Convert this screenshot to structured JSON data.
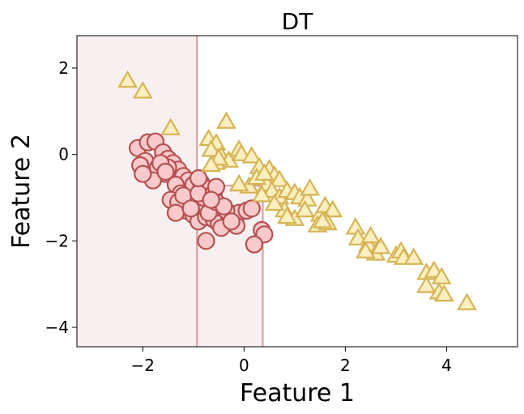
{
  "chart_data": {
    "type": "scatter",
    "title": "DT",
    "xlabel": "Feature 1",
    "ylabel": "Feature 2",
    "xlim": [
      -3.3,
      5.4
    ],
    "ylim": [
      -4.45,
      2.75
    ],
    "xticks": [
      -2,
      0,
      2,
      4
    ],
    "xtick_labels": [
      "−2",
      "0",
      "2",
      "4"
    ],
    "yticks": [
      2,
      0,
      -2,
      -4
    ],
    "ytick_labels": [
      "2",
      "0",
      "−2",
      "−4"
    ],
    "grid": false,
    "colors": {
      "circle_fill": "#f9c9cb",
      "circle_edge": "#b5504e",
      "triangle_fill": "#fbeec0",
      "triangle_edge": "#d6b453",
      "region_fill": "#f8eff0",
      "boundary": "#d9999b"
    },
    "decision_regions": [
      {
        "label": "circle",
        "x_range": [
          -3.3,
          -0.93
        ],
        "y_range": [
          -4.45,
          2.75
        ]
      },
      {
        "label": "circle",
        "x_range": [
          -0.93,
          0.37
        ],
        "y_range": [
          -4.45,
          -0.72
        ]
      }
    ],
    "boundaries": [
      {
        "x1": -0.93,
        "y1": -4.45,
        "x2": -0.93,
        "y2": 2.75
      },
      {
        "x1": 0.37,
        "y1": -4.45,
        "x2": 0.37,
        "y2": -0.72
      },
      {
        "x1": -0.93,
        "y1": -0.72,
        "x2": 0.37,
        "y2": -0.72
      }
    ],
    "series": [
      {
        "marker": "circle",
        "points": [
          [
            -2.1,
            0.15
          ],
          [
            -1.9,
            0.28
          ],
          [
            -1.75,
            0.3
          ],
          [
            -1.95,
            -0.15
          ],
          [
            -1.6,
            0.05
          ],
          [
            -1.5,
            -0.1
          ],
          [
            -1.7,
            -0.3
          ],
          [
            -1.4,
            -0.2
          ],
          [
            -1.3,
            -0.35
          ],
          [
            -1.55,
            -0.45
          ],
          [
            -1.2,
            -0.5
          ],
          [
            -1.1,
            -0.6
          ],
          [
            -1.0,
            -0.7
          ],
          [
            -0.85,
            -0.65
          ],
          [
            -0.7,
            -0.8
          ],
          [
            -1.35,
            -0.7
          ],
          [
            -1.25,
            -0.9
          ],
          [
            -1.45,
            -1.05
          ],
          [
            -1.1,
            -1.1
          ],
          [
            -0.95,
            -1.0
          ],
          [
            -0.8,
            -1.2
          ],
          [
            -0.65,
            -1.25
          ],
          [
            -1.15,
            -1.3
          ],
          [
            -1.0,
            -1.4
          ],
          [
            -0.9,
            -1.55
          ],
          [
            -0.75,
            -1.45
          ],
          [
            -0.6,
            -1.5
          ],
          [
            -0.5,
            -1.6
          ],
          [
            -0.45,
            -1.7
          ],
          [
            -0.3,
            -1.4
          ],
          [
            -0.2,
            -1.5
          ],
          [
            -0.1,
            -1.35
          ],
          [
            0.05,
            -1.3
          ],
          [
            0.15,
            -1.25
          ],
          [
            -0.15,
            -1.65
          ],
          [
            -0.35,
            -1.3
          ],
          [
            -1.3,
            -1.1
          ],
          [
            -1.2,
            -0.95
          ],
          [
            -0.8,
            -1.0
          ],
          [
            -0.9,
            -0.9
          ],
          [
            -0.6,
            -0.9
          ],
          [
            -0.7,
            -1.35
          ],
          [
            -1.5,
            -0.3
          ],
          [
            -2.05,
            -0.25
          ],
          [
            -1.8,
            -0.6
          ],
          [
            -2.0,
            -0.45
          ],
          [
            -1.65,
            -0.2
          ],
          [
            -1.55,
            -0.4
          ],
          [
            -1.35,
            -1.35
          ],
          [
            -0.55,
            -1.1
          ],
          [
            -0.4,
            -1.2
          ],
          [
            -0.75,
            -2.0
          ],
          [
            0.35,
            -1.75
          ],
          [
            0.4,
            -1.85
          ],
          [
            0.2,
            -2.08
          ],
          [
            -0.25,
            -1.55
          ],
          [
            -0.9,
            -0.55
          ],
          [
            -0.55,
            -0.75
          ],
          [
            -0.65,
            -1.05
          ],
          [
            -1.05,
            -1.25
          ],
          [
            2.55,
            -2.2
          ]
        ]
      },
      {
        "marker": "triangle",
        "points": [
          [
            -2.3,
            1.7
          ],
          [
            -2.0,
            1.45
          ],
          [
            -1.45,
            0.6
          ],
          [
            -0.35,
            0.75
          ],
          [
            -0.7,
            0.35
          ],
          [
            -0.55,
            0.25
          ],
          [
            -0.65,
            0.1
          ],
          [
            -0.45,
            -0.05
          ],
          [
            -0.3,
            -0.15
          ],
          [
            -0.1,
            0.1
          ],
          [
            -0.05,
            0.0
          ],
          [
            0.15,
            -0.05
          ],
          [
            0.3,
            -0.3
          ],
          [
            -0.55,
            -0.2
          ],
          [
            -0.5,
            -0.1
          ],
          [
            0.5,
            -0.35
          ],
          [
            0.6,
            -0.5
          ],
          [
            0.7,
            -0.6
          ],
          [
            0.45,
            -0.7
          ],
          [
            0.55,
            -0.85
          ],
          [
            0.7,
            -1.0
          ],
          [
            0.85,
            -0.85
          ],
          [
            1.0,
            -0.9
          ],
          [
            1.1,
            -1.0
          ],
          [
            1.25,
            -1.05
          ],
          [
            1.3,
            -0.8
          ],
          [
            0.8,
            -1.3
          ],
          [
            1.0,
            -1.5
          ],
          [
            0.85,
            -1.45
          ],
          [
            1.2,
            -1.3
          ],
          [
            1.5,
            -1.4
          ],
          [
            1.6,
            -1.2
          ],
          [
            1.75,
            -1.3
          ],
          [
            1.45,
            -1.65
          ],
          [
            1.65,
            -1.6
          ],
          [
            2.2,
            -1.7
          ],
          [
            2.25,
            -1.95
          ],
          [
            2.45,
            -2.1
          ],
          [
            2.6,
            -2.3
          ],
          [
            2.7,
            -2.15
          ],
          [
            2.5,
            -1.9
          ],
          [
            3.0,
            -2.35
          ],
          [
            3.1,
            -2.25
          ],
          [
            3.15,
            -2.4
          ],
          [
            3.35,
            -2.4
          ],
          [
            3.6,
            -2.75
          ],
          [
            3.75,
            -2.7
          ],
          [
            3.9,
            -2.85
          ],
          [
            3.85,
            -3.2
          ],
          [
            3.6,
            -3.05
          ],
          [
            3.95,
            -3.25
          ],
          [
            4.4,
            -3.45
          ],
          [
            0.1,
            -0.75
          ],
          [
            0.35,
            -0.95
          ],
          [
            0.6,
            -1.15
          ],
          [
            -0.1,
            -0.7
          ],
          [
            0.25,
            -0.55
          ],
          [
            0.4,
            -0.45
          ],
          [
            -0.65,
            -0.25
          ],
          [
            1.55,
            -1.55
          ],
          [
            2.4,
            -2.25
          ]
        ]
      }
    ]
  }
}
